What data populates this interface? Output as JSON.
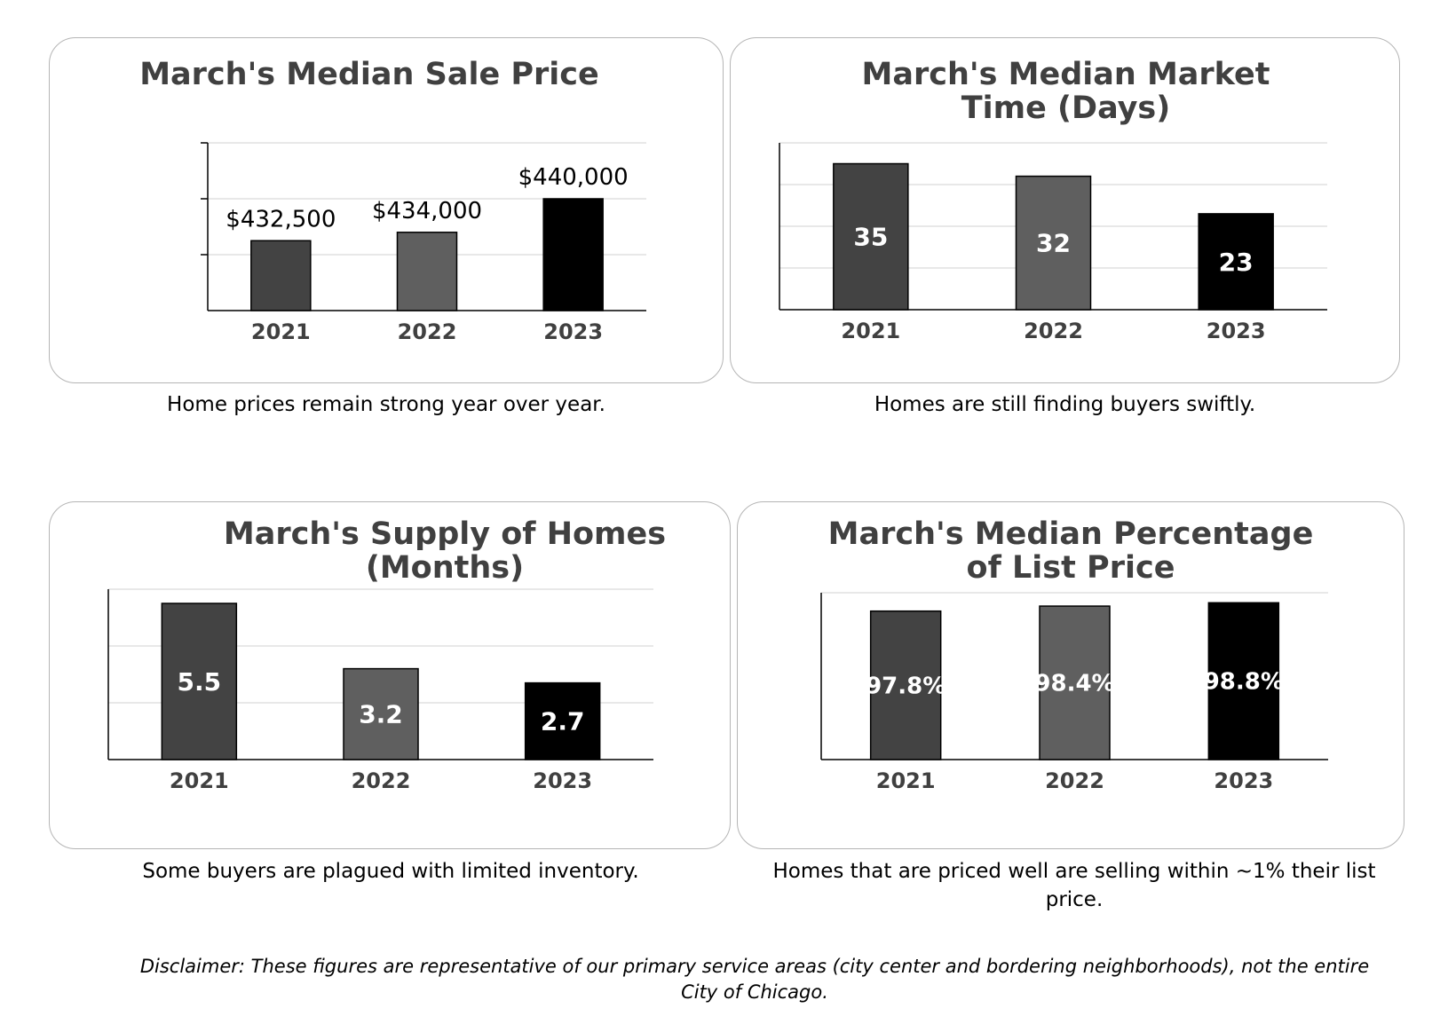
{
  "colors": {
    "bar_2021": "#434343",
    "bar_2022": "#5f5f5f",
    "bar_2023": "#000000",
    "grid": "#d9d9d9",
    "axis": "#000000"
  },
  "chart_data": [
    {
      "type": "bar",
      "title": "March's Median Sale Price",
      "categories": [
        "2021",
        "2022",
        "2023"
      ],
      "values": [
        432500,
        434000,
        440000
      ],
      "data_labels": [
        "$432,500",
        "$434,000",
        "$440,000"
      ],
      "label_position": "above",
      "ylim": [
        420000,
        450000
      ],
      "grid": true,
      "caption": "Home prices remain strong year over year."
    },
    {
      "type": "bar",
      "title": "March's Median Market Time (Days)",
      "categories": [
        "2021",
        "2022",
        "2023"
      ],
      "values": [
        35,
        32,
        23
      ],
      "data_labels": [
        "35",
        "32",
        "23"
      ],
      "label_position": "inside",
      "ylim": [
        0,
        40
      ],
      "grid": true,
      "caption": "Homes are still finding buyers swiftly."
    },
    {
      "type": "bar",
      "title": "March's Supply of Homes (Months)",
      "categories": [
        "2021",
        "2022",
        "2023"
      ],
      "values": [
        5.5,
        3.2,
        2.7
      ],
      "data_labels": [
        "5.5",
        "3.2",
        "2.7"
      ],
      "label_position": "inside",
      "ylim": [
        0,
        6
      ],
      "grid": true,
      "caption": "Some buyers are plagued with limited inventory."
    },
    {
      "type": "bar",
      "title": "March's Median Percentage of List Price",
      "categories": [
        "2021",
        "2022",
        "2023"
      ],
      "values": [
        97.8,
        98.4,
        98.8
      ],
      "data_labels": [
        "97.8%",
        "98.4%",
        "98.8%"
      ],
      "label_position": "inside",
      "ylim": [
        80,
        100
      ],
      "grid": true,
      "caption": "Homes that are priced well are selling within ~1% their list price."
    }
  ],
  "disclaimer": "Disclaimer: These figures are representative of our primary service areas (city center and bordering neighborhoods), not the entire City of Chicago."
}
